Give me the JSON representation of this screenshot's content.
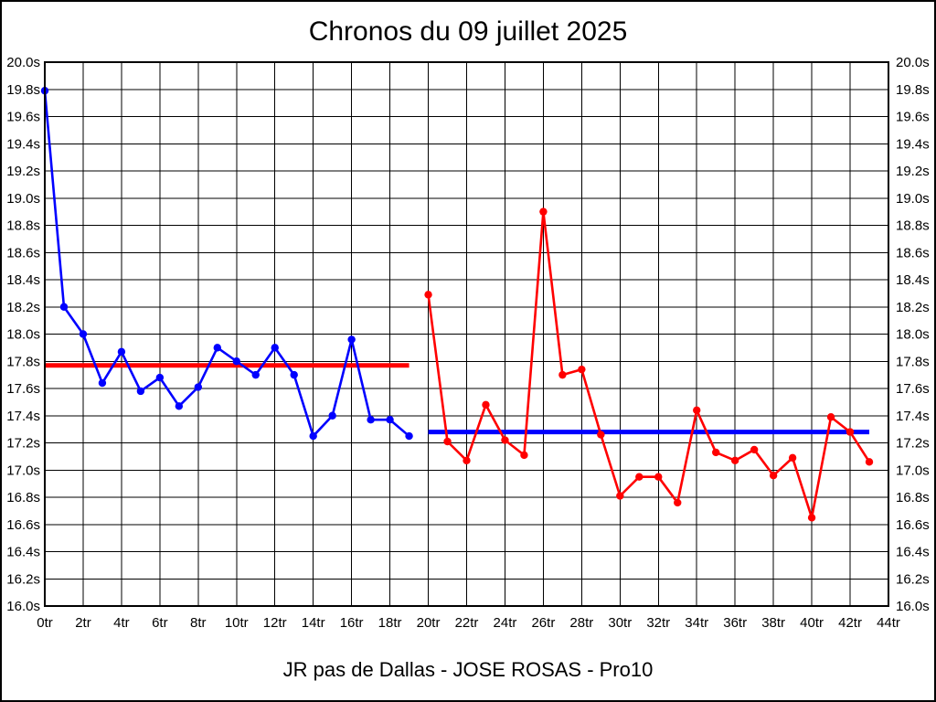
{
  "chart_data": {
    "type": "line",
    "title": "Chronos du 09 juillet 2025",
    "footer": "JR pas de Dallas - JOSE ROSAS - Pro10",
    "x_unit": "tr",
    "y_unit": "s",
    "xlim": [
      0,
      44
    ],
    "ylim": [
      16.0,
      20.0
    ],
    "grid": true,
    "legend": "none",
    "grid_color": "#000000",
    "background_color": "#ffffff",
    "x_tick_values": [
      0,
      2,
      4,
      6,
      8,
      10,
      12,
      14,
      16,
      18,
      20,
      22,
      24,
      26,
      28,
      30,
      32,
      34,
      36,
      38,
      40,
      42,
      44
    ],
    "x_tick_labels": [
      "0tr",
      "2tr",
      "4tr",
      "6tr",
      "8tr",
      "10tr",
      "12tr",
      "14tr",
      "16tr",
      "18tr",
      "20tr",
      "22tr",
      "24tr",
      "26tr",
      "28tr",
      "30tr",
      "32tr",
      "34tr",
      "36tr",
      "38tr",
      "40tr",
      "42tr",
      "44tr"
    ],
    "y_tick_values": [
      20.0,
      19.8,
      19.6,
      19.4,
      19.2,
      19.0,
      18.8,
      18.6,
      18.4,
      18.2,
      18.0,
      17.8,
      17.6,
      17.4,
      17.2,
      17.0,
      16.8,
      16.6,
      16.4,
      16.2,
      16.0
    ],
    "y_tick_labels": [
      "20.0s",
      "19.8s",
      "19.6s",
      "19.4s",
      "19.2s",
      "19.0s",
      "18.8s",
      "18.6s",
      "18.4s",
      "18.2s",
      "18.0s",
      "17.8s",
      "17.6s",
      "17.4s",
      "17.2s",
      "17.0s",
      "16.8s",
      "16.6s",
      "16.4s",
      "16.2s",
      "16.0s"
    ],
    "series": [
      {
        "name": "run-1-blue",
        "color": "#0000ff",
        "marker": "circle",
        "x_start": 0,
        "values": [
          19.79,
          18.2,
          18.0,
          17.64,
          17.87,
          17.58,
          17.68,
          17.47,
          17.61,
          17.9,
          17.8,
          17.7,
          17.9,
          17.7,
          17.25,
          17.4,
          17.96,
          17.37,
          17.37,
          17.25
        ]
      },
      {
        "name": "run-2-red",
        "color": "#ff0000",
        "marker": "circle",
        "x_start": 20,
        "values": [
          18.29,
          17.21,
          17.07,
          17.48,
          17.22,
          17.11,
          18.9,
          17.7,
          17.74,
          17.26,
          16.81,
          16.95,
          16.95,
          16.76,
          17.44,
          17.13,
          17.07,
          17.15,
          16.96,
          17.09,
          16.65,
          17.39,
          17.28,
          17.06
        ]
      }
    ],
    "mean_lines": [
      {
        "name": "mean-of-run-1",
        "color": "#ff0000",
        "value": 17.77,
        "x_range": [
          0,
          19
        ]
      },
      {
        "name": "mean-of-run-2",
        "color": "#0000ff",
        "value": 17.28,
        "x_range": [
          20,
          43
        ]
      }
    ]
  }
}
